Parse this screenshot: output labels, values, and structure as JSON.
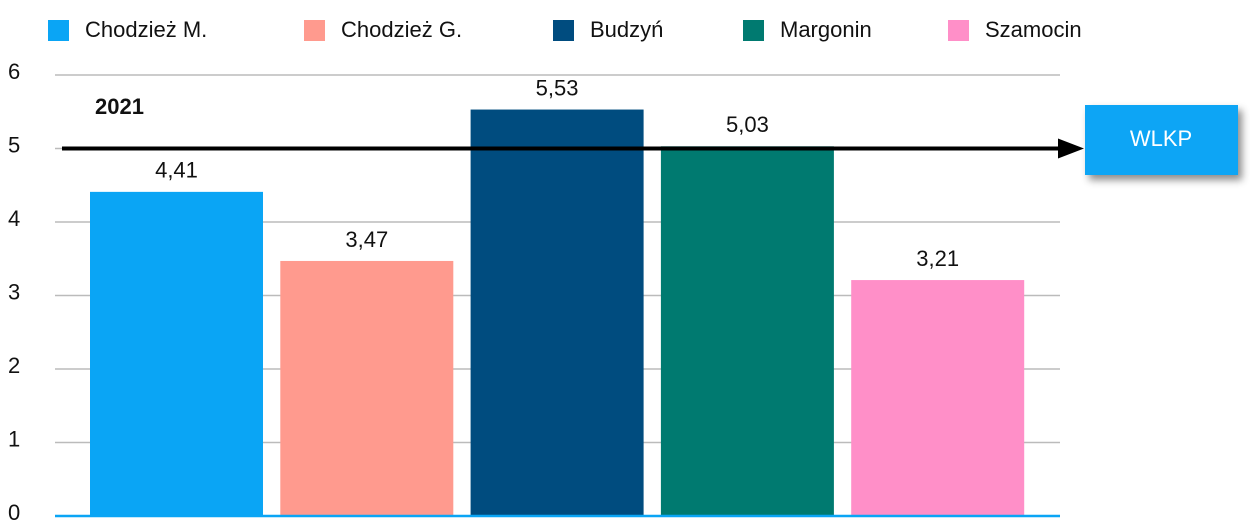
{
  "chart_data": {
    "type": "bar",
    "series": [
      {
        "name": "Chodzież M.",
        "color": "#0aa5f5",
        "values": [
          4.41
        ],
        "value_labels": [
          "4,41"
        ]
      },
      {
        "name": "Chodzież G.",
        "color": "#ff9a8e",
        "values": [
          3.47
        ],
        "value_labels": [
          "3,47"
        ]
      },
      {
        "name": "Budzyń",
        "color": "#004c7f",
        "values": [
          5.53
        ],
        "value_labels": [
          "5,53"
        ]
      },
      {
        "name": "Margonin",
        "color": "#007a70",
        "values": [
          5.03
        ],
        "value_labels": [
          "5,03"
        ]
      },
      {
        "name": "Szamocin",
        "color": "#ff8fc8",
        "values": [
          3.21
        ],
        "value_labels": [
          "3,21"
        ]
      }
    ],
    "ylim": [
      0,
      6
    ],
    "yticks": [
      0,
      1,
      2,
      3,
      4,
      5,
      6
    ],
    "grid": true,
    "legend": "top",
    "annotations": [
      "2021"
    ],
    "reference_line": {
      "value": 5,
      "label": "WLKP",
      "color": "#0aa5f5"
    }
  }
}
